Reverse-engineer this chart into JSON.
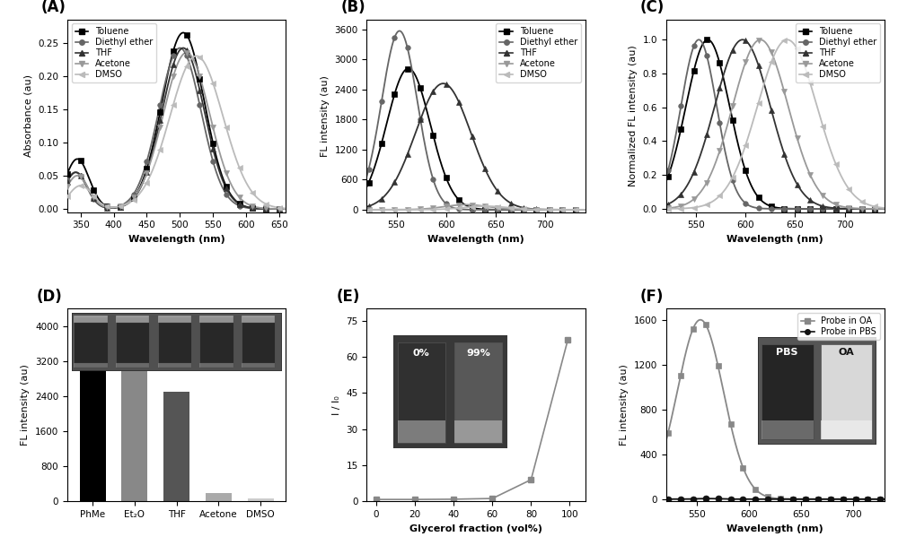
{
  "panel_A": {
    "title": "(A)",
    "xlabel": "Wavelength (nm)",
    "ylabel": "Absorbance (au)",
    "xlim": [
      330,
      660
    ],
    "ylim": [
      -0.005,
      0.285
    ],
    "yticks": [
      0.0,
      0.05,
      0.1,
      0.15,
      0.2,
      0.25
    ],
    "solvents": [
      "Toluene",
      "Diethyl ether",
      "THF",
      "Acetone",
      "DMSO"
    ],
    "colors": [
      "#000000",
      "#666666",
      "#333333",
      "#999999",
      "#bbbbbb"
    ],
    "markers": [
      "s",
      "o",
      "^",
      "v",
      "<"
    ],
    "peak_wl": [
      505,
      500,
      505,
      510,
      525
    ],
    "peak_abs": [
      0.265,
      0.242,
      0.242,
      0.235,
      0.23
    ],
    "sigma": [
      32,
      32,
      32,
      35,
      40
    ],
    "shoulder_wl": [
      345,
      342,
      343,
      345,
      350
    ],
    "shoulder_abs": [
      0.075,
      0.055,
      0.055,
      0.05,
      0.035
    ],
    "shoulder_sigma": [
      18,
      17,
      17,
      17,
      18
    ]
  },
  "panel_B": {
    "title": "(B)",
    "xlabel": "Wavelength (nm)",
    "ylabel": "FL intensity (au)",
    "xlim": [
      520,
      740
    ],
    "ylim": [
      -50,
      3800
    ],
    "yticks": [
      0,
      600,
      1200,
      1800,
      2400,
      3000,
      3600
    ],
    "solvents": [
      "Toluene",
      "Diethyl ether",
      "THF",
      "Acetone",
      "DMSO"
    ],
    "colors": [
      "#000000",
      "#666666",
      "#333333",
      "#999999",
      "#bbbbbb"
    ],
    "markers": [
      "s",
      "o",
      "^",
      "v",
      "<"
    ],
    "peak_wl": [
      562,
      553,
      597,
      620,
      640
    ],
    "peak_fl": [
      2820,
      3570,
      2520,
      100,
      70
    ],
    "sigma": [
      22,
      18,
      28,
      22,
      22
    ]
  },
  "panel_C": {
    "title": "(C)",
    "xlabel": "Wavelength (nm)",
    "ylabel": "Normalized FL intensity (au)",
    "xlim": [
      520,
      740
    ],
    "ylim": [
      -0.02,
      1.12
    ],
    "yticks": [
      0.0,
      0.2,
      0.4,
      0.6,
      0.8,
      1.0
    ],
    "solvents": [
      "Toluene",
      "Diethyl ether",
      "THF",
      "Acetone",
      "DMSO"
    ],
    "colors": [
      "#000000",
      "#666666",
      "#333333",
      "#999999",
      "#bbbbbb"
    ],
    "markers": [
      "s",
      "o",
      "^",
      "v",
      "<"
    ],
    "peak_wl": [
      562,
      553,
      597,
      615,
      642
    ],
    "sigma": [
      22,
      18,
      28,
      28,
      30
    ]
  },
  "panel_D": {
    "title": "(D)",
    "ylabel": "FL intensity (au)",
    "ylim": [
      0,
      4400
    ],
    "yticks": [
      0,
      800,
      1600,
      2400,
      3200,
      4000
    ],
    "categories": [
      "PhMe",
      "Et₂O",
      "THF",
      "Acetone",
      "DMSO"
    ],
    "values": [
      3000,
      3450,
      2500,
      200,
      60
    ],
    "bar_colors": [
      "#000000",
      "#888888",
      "#555555",
      "#aaaaaa",
      "#cccccc"
    ]
  },
  "panel_E": {
    "title": "(E)",
    "xlabel": "Glycerol fraction (vol%)",
    "ylabel": "I / I₀",
    "xlim": [
      -5,
      108
    ],
    "ylim": [
      0,
      80
    ],
    "yticks": [
      0,
      15,
      30,
      45,
      60,
      75
    ],
    "xticks": [
      0,
      20,
      40,
      60,
      80,
      100
    ],
    "x": [
      0,
      20,
      40,
      60,
      80,
      99
    ],
    "y": [
      0.8,
      0.8,
      0.9,
      1.2,
      9.0,
      67.0
    ],
    "color": "#888888",
    "marker": "s"
  },
  "panel_F": {
    "title": "(F)",
    "xlabel": "Wavelength (nm)",
    "ylabel": "FL intensity (au)",
    "xlim": [
      520,
      730
    ],
    "ylim": [
      -20,
      1700
    ],
    "yticks": [
      0,
      400,
      800,
      1200,
      1600
    ],
    "solvents": [
      "Probe in OA",
      "Probe in PBS"
    ],
    "colors": [
      "#888888",
      "#111111"
    ],
    "markers": [
      "s",
      "o"
    ],
    "peak_wl": [
      553,
      560
    ],
    "peak_fl": [
      1600,
      5
    ],
    "sigma": [
      22,
      10
    ]
  }
}
